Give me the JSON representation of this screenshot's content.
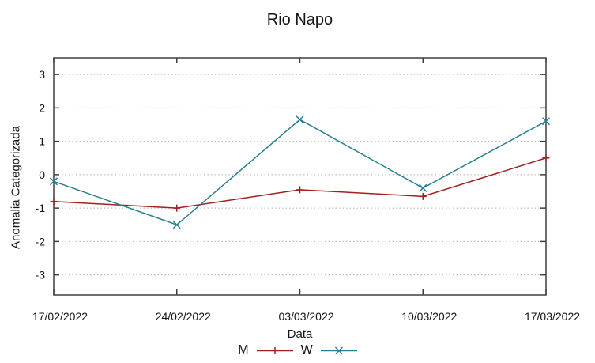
{
  "chart_data": {
    "type": "line",
    "title": "Rio Napo",
    "xlabel": "Data",
    "ylabel": "Anomalia Categorizada",
    "categories": [
      "17/02/2022",
      "24/02/2022",
      "03/03/2022",
      "10/03/2022",
      "17/03/2022"
    ],
    "series": [
      {
        "name": "M",
        "color": "#a42020",
        "marker": "plus",
        "values": [
          -0.8,
          -1.0,
          -0.45,
          -0.65,
          0.5
        ]
      },
      {
        "name": "W",
        "color": "#27808f",
        "marker": "cross",
        "values": [
          -0.2,
          -1.5,
          1.65,
          -0.4,
          1.6
        ]
      }
    ],
    "y_ticks": [
      -3,
      -2,
      -1,
      0,
      1,
      2,
      3
    ],
    "ylim": [
      -3.6,
      3.5
    ],
    "grid": "horizontal-dotted",
    "legend_position": "bottom-center",
    "background_color": "#ffffff",
    "border_color": "#3f3f3f",
    "grid_color": "#b0b0b0",
    "text_color": "#141414"
  }
}
